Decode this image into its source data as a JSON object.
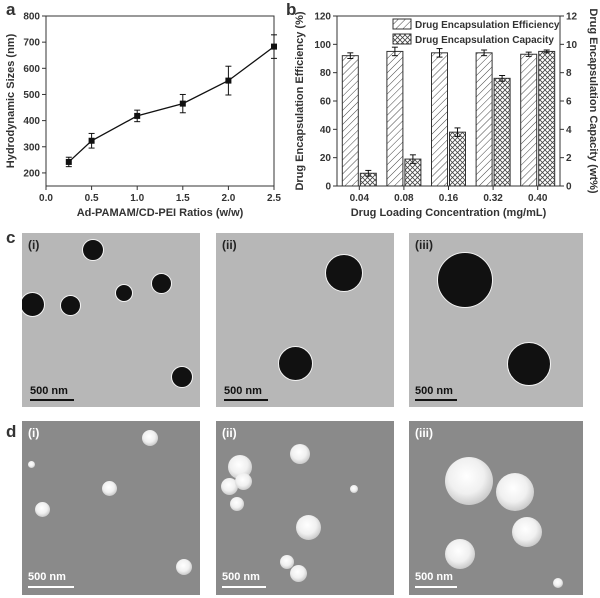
{
  "panels": {
    "a": {
      "letter": "a"
    },
    "b": {
      "letter": "b"
    },
    "c": {
      "letter": "c",
      "subs": [
        "(i)",
        "(ii)",
        "(iii)"
      ],
      "scale": "500 nm"
    },
    "d": {
      "letter": "d",
      "subs": [
        "(i)",
        "(ii)",
        "(iii)"
      ],
      "scale": "500 nm"
    }
  },
  "chart_data": [
    {
      "type": "line",
      "xlabel": "Ad-PAMAM/CD-PEI Ratios (w/w)",
      "ylabel": "Hydrodynamic Sizes (nm)",
      "xlim": [
        0.0,
        2.5
      ],
      "ylim": [
        150,
        800
      ],
      "xticks": [
        "0.0",
        "0.5",
        "1.0",
        "1.5",
        "2.0",
        "2.5"
      ],
      "yticks": [
        "200",
        "300",
        "400",
        "500",
        "600",
        "700",
        "800"
      ],
      "x": [
        0.25,
        0.5,
        1.0,
        1.5,
        2.0,
        2.5
      ],
      "y": [
        242,
        323,
        418,
        465,
        553,
        683
      ],
      "err": [
        18,
        28,
        22,
        35,
        55,
        45
      ]
    },
    {
      "type": "bar",
      "xlabel": "Drug Loading Concentration (mg/mL)",
      "ylabel": "Drug Encapsulation Efficiency (%)",
      "ylabel_right": "Drug Encapsulation Capacity (wt%)",
      "categories": [
        "0.04",
        "0.08",
        "0.16",
        "0.32",
        "0.40"
      ],
      "ylim": [
        0,
        120
      ],
      "ylim_right": [
        0,
        12
      ],
      "yticks": [
        "0",
        "20",
        "40",
        "60",
        "80",
        "100",
        "120"
      ],
      "yticks_right": [
        "0",
        "2",
        "4",
        "6",
        "8",
        "10",
        "12"
      ],
      "legend_position": "top-right",
      "series": [
        {
          "name": "Drug Encapsulation Efficiency",
          "axis": "left",
          "pattern": "diagonal",
          "values": [
            92,
            95,
            94,
            94,
            93
          ],
          "err": [
            2,
            3,
            3,
            2,
            1.5
          ]
        },
        {
          "name": "Drug Encapsulation Capacity",
          "axis": "right",
          "pattern": "crosshatch",
          "values": [
            0.9,
            1.9,
            3.8,
            7.6,
            9.5
          ],
          "err": [
            0.2,
            0.3,
            0.3,
            0.2,
            0.1
          ]
        }
      ]
    }
  ]
}
